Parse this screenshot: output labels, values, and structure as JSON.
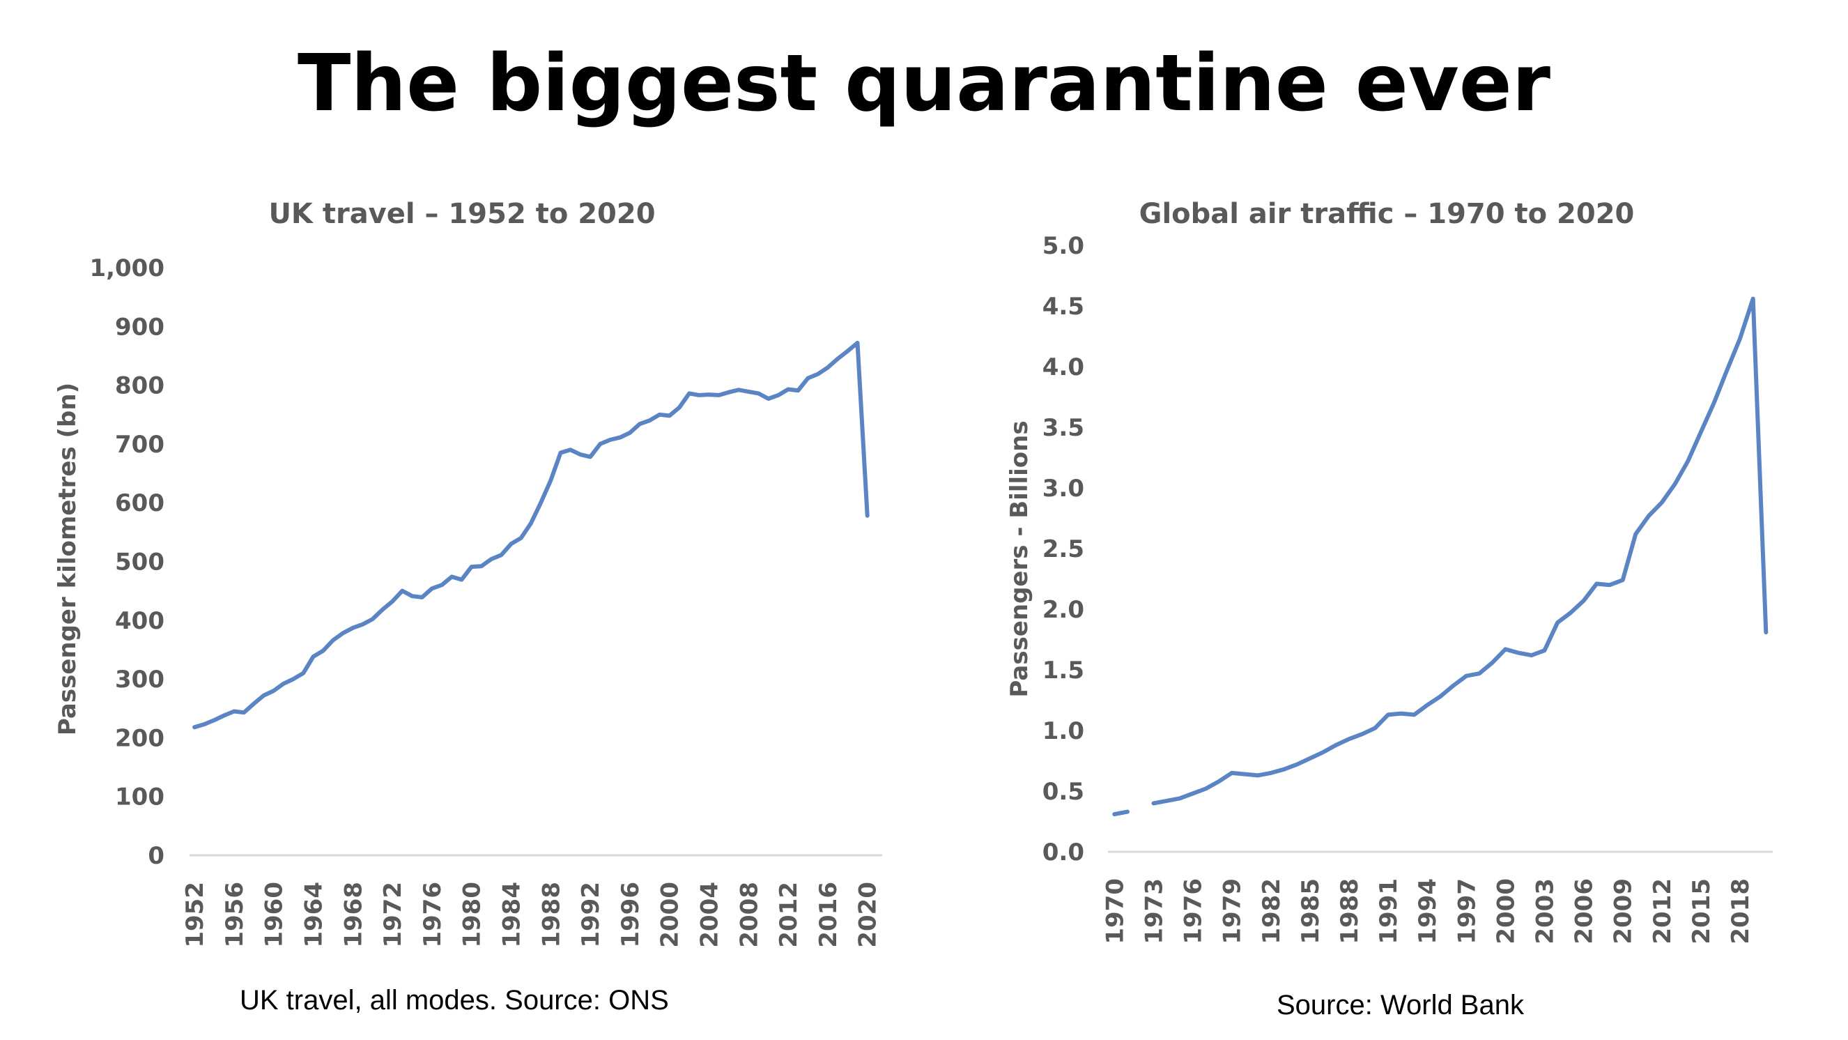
{
  "title": "The biggest quarantine ever",
  "colors": {
    "line": "#5b84c4",
    "axis": "#d9d9d9",
    "text": "#595959"
  },
  "chart_data": [
    {
      "type": "line",
      "title": "UK travel – 1952 to 2020",
      "xlabel": "",
      "ylabel": "Passenger kilometres (bn)",
      "ylim": [
        0,
        1000
      ],
      "grid": false,
      "y_ticks": [
        "0",
        "100",
        "200",
        "300",
        "400",
        "500",
        "600",
        "700",
        "800",
        "900",
        "1,000"
      ],
      "x_ticks": [
        "1952",
        "1956",
        "1960",
        "1964",
        "1968",
        "1972",
        "1976",
        "1980",
        "1984",
        "1988",
        "1992",
        "1996",
        "2000",
        "2004",
        "2008",
        "2012",
        "2016",
        "2020"
      ],
      "x": [
        1952,
        1953,
        1954,
        1955,
        1956,
        1957,
        1958,
        1959,
        1960,
        1961,
        1962,
        1963,
        1964,
        1965,
        1966,
        1967,
        1968,
        1969,
        1970,
        1971,
        1972,
        1973,
        1974,
        1975,
        1976,
        1977,
        1978,
        1979,
        1980,
        1981,
        1982,
        1983,
        1984,
        1985,
        1986,
        1987,
        1988,
        1989,
        1990,
        1991,
        1992,
        1993,
        1994,
        1995,
        1996,
        1997,
        1998,
        1999,
        2000,
        2001,
        2002,
        2003,
        2004,
        2005,
        2006,
        2007,
        2008,
        2009,
        2010,
        2011,
        2012,
        2013,
        2014,
        2015,
        2016,
        2017,
        2018,
        2019,
        2020
      ],
      "series": [
        {
          "values": [
            218,
            223,
            230,
            238,
            245,
            243,
            258,
            272,
            280,
            292,
            300,
            310,
            338,
            348,
            366,
            378,
            387,
            393,
            402,
            418,
            432,
            450,
            441,
            439,
            454,
            460,
            474,
            469,
            491,
            492,
            504,
            511,
            530,
            540,
            565,
            600,
            638,
            685,
            690,
            682,
            678,
            700,
            707,
            711,
            719,
            734,
            740,
            750,
            748,
            762,
            786,
            783,
            784,
            783,
            788,
            792,
            789,
            786,
            777,
            783,
            793,
            791,
            812,
            819,
            830,
            845,
            858,
            872,
            578
          ]
        }
      ],
      "source": "UK travel, all modes. Source: ONS"
    },
    {
      "type": "line",
      "title": "Global air traffic – 1970 to 2020",
      "xlabel": "",
      "ylabel": "Passengers - Billions",
      "ylim": [
        0,
        5
      ],
      "grid": false,
      "y_ticks": [
        "0.0",
        "0.5",
        "1.0",
        "1.5",
        "2.0",
        "2.5",
        "3.0",
        "3.5",
        "4.0",
        "4.5",
        "5.0"
      ],
      "x_ticks": [
        "1970",
        "1973",
        "1976",
        "1979",
        "1982",
        "1985",
        "1988",
        "1991",
        "1994",
        "1997",
        "2000",
        "2003",
        "2006",
        "2009",
        "2012",
        "2015",
        "2018"
      ],
      "x": [
        1970,
        1971,
        1972,
        1973,
        1974,
        1975,
        1976,
        1977,
        1978,
        1979,
        1980,
        1981,
        1982,
        1983,
        1984,
        1985,
        1986,
        1987,
        1988,
        1989,
        1990,
        1991,
        1992,
        1993,
        1994,
        1995,
        1996,
        1997,
        1998,
        1999,
        2000,
        2001,
        2002,
        2003,
        2004,
        2005,
        2006,
        2007,
        2008,
        2009,
        2010,
        2011,
        2012,
        2013,
        2014,
        2015,
        2016,
        2017,
        2018,
        2019,
        2020
      ],
      "series": [
        {
          "values": [
            0.31,
            0.33,
            null,
            0.4,
            0.42,
            0.44,
            0.48,
            0.52,
            0.58,
            0.65,
            0.64,
            0.63,
            0.65,
            0.68,
            0.72,
            0.77,
            0.82,
            0.88,
            0.93,
            0.97,
            1.02,
            1.13,
            1.14,
            1.13,
            1.21,
            1.28,
            1.37,
            1.45,
            1.47,
            1.56,
            1.67,
            1.64,
            1.62,
            1.66,
            1.89,
            1.97,
            2.07,
            2.21,
            2.2,
            2.24,
            2.62,
            2.77,
            2.88,
            3.03,
            3.22,
            3.46,
            3.7,
            3.97,
            4.23,
            4.56,
            1.81
          ]
        }
      ],
      "source": "Source: World Bank"
    }
  ]
}
